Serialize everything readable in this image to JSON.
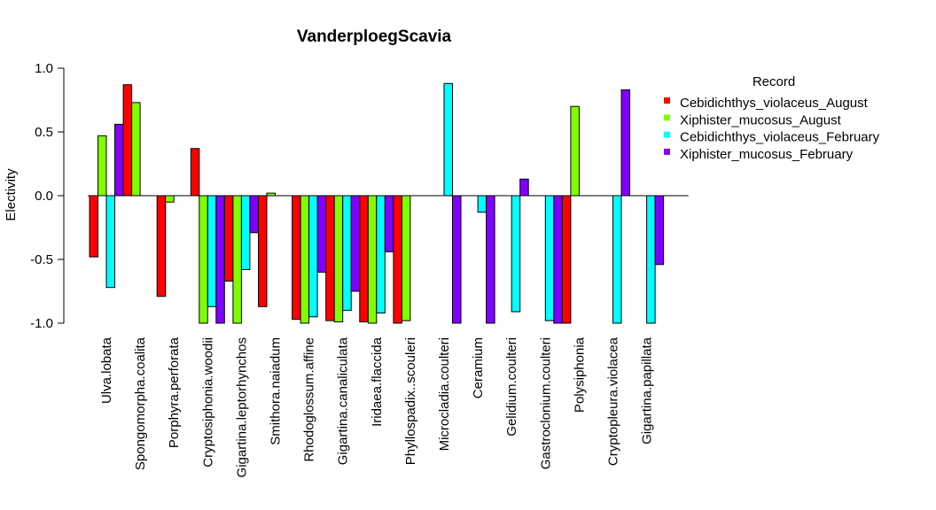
{
  "chart_data": {
    "type": "bar",
    "title": "VanderploegScavia",
    "xlabel": "",
    "ylabel": "Electivity",
    "ylim": [
      -1.0,
      1.0
    ],
    "yticks": [
      "-1.0",
      "-0.5",
      "0.0",
      "0.5",
      "1.0"
    ],
    "ytick_values": [
      -1.0,
      -0.5,
      0.0,
      0.5,
      1.0
    ],
    "legend_title": "Record",
    "legend_position": "right",
    "grid": false,
    "categories": [
      "Ulva.lobata",
      "Spongomorpha.coalita",
      "Porphyra.perforata",
      "Cryptosiphonia.woodii",
      "Gigartina.leptorhynchos",
      "Smithora.naiadum",
      "Rhodoglossum.affine",
      "Gigartina.canaliculata",
      "Iridaea.flaccida",
      "Phyllospadix..scouleri",
      "Microcladia.coulteri",
      "Ceramium",
      "Gelidium.coulteri",
      "Gastroclonium.coulteri",
      "Polysiphonia",
      "Cryptopleura.violacea",
      "Gigartina.papillata"
    ],
    "series": [
      {
        "name": "Cebidichthys_violaceus_August",
        "color": "#ff0000",
        "values": [
          -0.48,
          0.87,
          -0.79,
          0.37,
          -0.67,
          -0.87,
          -0.97,
          -0.98,
          -0.99,
          -1.0,
          null,
          null,
          null,
          null,
          -1.0,
          null,
          null
        ]
      },
      {
        "name": "Xiphister_mucosus_August",
        "color": "#80ff00",
        "values": [
          0.47,
          0.73,
          -0.05,
          -1.0,
          -1.0,
          0.02,
          -1.0,
          -0.99,
          -1.0,
          -0.98,
          null,
          null,
          null,
          null,
          0.7,
          null,
          null
        ]
      },
      {
        "name": "Cebidichthys_violaceus_February",
        "color": "#00ffff",
        "values": [
          -0.72,
          null,
          null,
          -0.87,
          -0.58,
          null,
          -0.95,
          -0.9,
          -0.92,
          null,
          0.88,
          -0.13,
          -0.91,
          -0.98,
          null,
          -1.0,
          -1.0
        ]
      },
      {
        "name": "Xiphister_mucosus_February",
        "color": "#8000ff",
        "values": [
          0.56,
          null,
          null,
          -1.0,
          -0.29,
          null,
          -0.6,
          -0.75,
          -0.44,
          null,
          -1.0,
          -1.0,
          0.13,
          -1.0,
          null,
          0.83,
          -0.54
        ]
      }
    ]
  }
}
